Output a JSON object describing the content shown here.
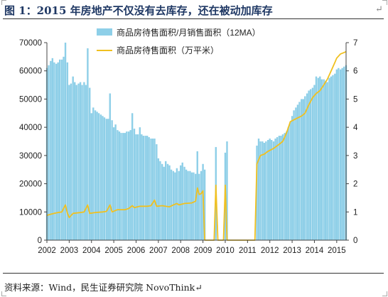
{
  "page": {
    "title": "图 1：2015 年房地产不仅没有去库存，还在被动加库存",
    "title_mark": "↵",
    "source": "资料来源：Wind，民生证券研究院 NovoThink↵"
  },
  "colors": {
    "bar": "#8ecfe8",
    "line": "#f0c020",
    "axis": "#444444",
    "text": "#222222"
  },
  "chart_data": {
    "type": "bar",
    "legend_position": "top",
    "grid": false,
    "x_ticks": [
      "2002",
      "2003",
      "2004",
      "2005",
      "2006",
      "2007",
      "2008",
      "2009",
      "2010",
      "2011",
      "2012",
      "2013",
      "2014",
      "2015"
    ],
    "xlim": [
      2002,
      2015.42
    ],
    "y_left": {
      "lim": [
        0,
        70000
      ],
      "ticks": [
        "0",
        "10000",
        "20000",
        "30000",
        "40000",
        "50000",
        "60000",
        "70000"
      ]
    },
    "y_right": {
      "lim": [
        0,
        7
      ],
      "ticks": [
        "0",
        "1",
        "2",
        "3",
        "4",
        "5",
        "6",
        "7"
      ]
    },
    "series": [
      {
        "name": "商品房待售面积/月销售面积（12MA）",
        "type": "bar",
        "axis": "left",
        "points": [
          [
            2002.0,
            61000
          ],
          [
            2002.08,
            62000
          ],
          [
            2002.17,
            63500
          ],
          [
            2002.25,
            64500
          ],
          [
            2002.33,
            63000
          ],
          [
            2002.42,
            62500
          ],
          [
            2002.5,
            63000
          ],
          [
            2002.58,
            64000
          ],
          [
            2002.67,
            64000
          ],
          [
            2002.75,
            65000
          ],
          [
            2002.83,
            70000
          ],
          [
            2002.92,
            63000
          ],
          [
            2003.0,
            55000
          ],
          [
            2003.08,
            55500
          ],
          [
            2003.17,
            58000
          ],
          [
            2003.25,
            56000
          ],
          [
            2003.33,
            55000
          ],
          [
            2003.42,
            55500
          ],
          [
            2003.5,
            56000
          ],
          [
            2003.58,
            55000
          ],
          [
            2003.67,
            56000
          ],
          [
            2003.75,
            55000
          ],
          [
            2003.83,
            68000
          ],
          [
            2003.92,
            54000
          ],
          [
            2004.0,
            45000
          ],
          [
            2004.08,
            47000
          ],
          [
            2004.17,
            46000
          ],
          [
            2004.25,
            45500
          ],
          [
            2004.33,
            45000
          ],
          [
            2004.42,
            44500
          ],
          [
            2004.5,
            44000
          ],
          [
            2004.58,
            43500
          ],
          [
            2004.67,
            43000
          ],
          [
            2004.75,
            43000
          ],
          [
            2004.83,
            52000
          ],
          [
            2004.92,
            42500
          ],
          [
            2005.0,
            40000
          ],
          [
            2005.08,
            41000
          ],
          [
            2005.17,
            39000
          ],
          [
            2005.25,
            38500
          ],
          [
            2005.33,
            38000
          ],
          [
            2005.42,
            38000
          ],
          [
            2005.5,
            38000
          ],
          [
            2005.58,
            38500
          ],
          [
            2005.67,
            38500
          ],
          [
            2005.75,
            39000
          ],
          [
            2005.83,
            45000
          ],
          [
            2005.92,
            39500
          ],
          [
            2006.0,
            37500
          ],
          [
            2006.08,
            37500
          ],
          [
            2006.17,
            40000
          ],
          [
            2006.25,
            37500
          ],
          [
            2006.33,
            37000
          ],
          [
            2006.42,
            37000
          ],
          [
            2006.5,
            37000
          ],
          [
            2006.58,
            36500
          ],
          [
            2006.67,
            36000
          ],
          [
            2006.75,
            36000
          ],
          [
            2006.83,
            36000
          ],
          [
            2006.92,
            34000
          ],
          [
            2007.0,
            29000
          ],
          [
            2007.08,
            28000
          ],
          [
            2007.17,
            27000
          ],
          [
            2007.25,
            26000
          ],
          [
            2007.33,
            28000
          ],
          [
            2007.42,
            27000
          ],
          [
            2007.5,
            26500
          ],
          [
            2007.58,
            25000
          ],
          [
            2007.67,
            24500
          ],
          [
            2007.75,
            24000
          ],
          [
            2007.83,
            25500
          ],
          [
            2007.92,
            24500
          ],
          [
            2008.0,
            26500
          ],
          [
            2008.08,
            27500
          ],
          [
            2008.17,
            26000
          ],
          [
            2008.25,
            25000
          ],
          [
            2008.33,
            24500
          ],
          [
            2008.42,
            24500
          ],
          [
            2008.5,
            24000
          ],
          [
            2008.58,
            24000
          ],
          [
            2008.67,
            23500
          ],
          [
            2008.75,
            31500
          ],
          [
            2008.83,
            23500
          ],
          [
            2008.92,
            24500
          ],
          [
            2009.0,
            27000
          ],
          [
            2009.08,
            25000
          ],
          [
            2009.58,
            33000
          ],
          [
            2010.0,
            31000
          ],
          [
            2010.08,
            35000
          ],
          [
            2011.42,
            33500
          ],
          [
            2011.5,
            36000
          ],
          [
            2011.58,
            35000
          ],
          [
            2011.67,
            35000
          ],
          [
            2011.75,
            34500
          ],
          [
            2011.83,
            35000
          ],
          [
            2011.92,
            35500
          ],
          [
            2012.0,
            36000
          ],
          [
            2012.08,
            35500
          ],
          [
            2012.17,
            35000
          ],
          [
            2012.25,
            36000
          ],
          [
            2012.33,
            36500
          ],
          [
            2012.42,
            37000
          ],
          [
            2012.5,
            37000
          ],
          [
            2012.58,
            37500
          ],
          [
            2012.67,
            38000
          ],
          [
            2012.75,
            38500
          ],
          [
            2012.83,
            40000
          ],
          [
            2012.92,
            42000
          ],
          [
            2013.0,
            44000
          ],
          [
            2013.08,
            46000
          ],
          [
            2013.17,
            47000
          ],
          [
            2013.25,
            48000
          ],
          [
            2013.33,
            49000
          ],
          [
            2013.42,
            50000
          ],
          [
            2013.5,
            50000
          ],
          [
            2013.58,
            51000
          ],
          [
            2013.67,
            52000
          ],
          [
            2013.75,
            53000
          ],
          [
            2013.83,
            53500
          ],
          [
            2013.92,
            54000
          ],
          [
            2014.0,
            55000
          ],
          [
            2014.08,
            58000
          ],
          [
            2014.17,
            57500
          ],
          [
            2014.25,
            58000
          ],
          [
            2014.33,
            57000
          ],
          [
            2014.42,
            57000
          ],
          [
            2014.5,
            56500
          ],
          [
            2014.58,
            56000
          ],
          [
            2014.67,
            57500
          ],
          [
            2014.75,
            58000
          ],
          [
            2014.83,
            58500
          ],
          [
            2014.92,
            59000
          ],
          [
            2015.0,
            60500
          ],
          [
            2015.08,
            61000
          ],
          [
            2015.17,
            60500
          ],
          [
            2015.25,
            61000
          ],
          [
            2015.33,
            61500
          ],
          [
            2015.42,
            62000
          ]
        ]
      },
      {
        "name": "商品房待售面积（万平米）",
        "type": "line",
        "axis": "right",
        "points": [
          [
            2002.0,
            0.88
          ],
          [
            2002.17,
            0.92
          ],
          [
            2002.33,
            0.95
          ],
          [
            2002.5,
            0.98
          ],
          [
            2002.67,
            1.0
          ],
          [
            2002.83,
            1.25
          ],
          [
            2002.92,
            0.95
          ],
          [
            2003.0,
            0.8
          ],
          [
            2003.17,
            0.95
          ],
          [
            2003.5,
            0.98
          ],
          [
            2003.67,
            1.0
          ],
          [
            2003.83,
            1.25
          ],
          [
            2003.92,
            0.95
          ],
          [
            2004.17,
            0.98
          ],
          [
            2004.5,
            1.0
          ],
          [
            2004.67,
            1.02
          ],
          [
            2004.83,
            1.25
          ],
          [
            2004.92,
            1.0
          ],
          [
            2005.17,
            1.08
          ],
          [
            2005.5,
            1.08
          ],
          [
            2005.67,
            1.12
          ],
          [
            2005.83,
            1.22
          ],
          [
            2005.92,
            1.15
          ],
          [
            2006.17,
            1.2
          ],
          [
            2006.5,
            1.2
          ],
          [
            2006.67,
            1.22
          ],
          [
            2006.83,
            1.42
          ],
          [
            2006.92,
            1.2
          ],
          [
            2007.17,
            1.22
          ],
          [
            2007.5,
            1.18
          ],
          [
            2007.67,
            1.25
          ],
          [
            2007.83,
            1.3
          ],
          [
            2007.92,
            1.25
          ],
          [
            2008.17,
            1.3
          ],
          [
            2008.5,
            1.32
          ],
          [
            2008.67,
            1.38
          ],
          [
            2008.75,
            1.85
          ],
          [
            2008.83,
            1.62
          ],
          [
            2008.92,
            1.65
          ],
          [
            2009.0,
            1.75
          ],
          [
            2009.08,
            0.0
          ],
          [
            2009.5,
            0.0
          ],
          [
            2009.58,
            1.95
          ],
          [
            2009.67,
            0.0
          ],
          [
            2009.92,
            0.0
          ],
          [
            2010.0,
            1.95
          ],
          [
            2010.08,
            0.0
          ],
          [
            2011.33,
            0.0
          ],
          [
            2011.42,
            2.7
          ],
          [
            2011.58,
            3.0
          ],
          [
            2011.75,
            3.05
          ],
          [
            2011.92,
            3.15
          ],
          [
            2012.17,
            3.25
          ],
          [
            2012.42,
            3.4
          ],
          [
            2012.58,
            3.5
          ],
          [
            2012.75,
            3.8
          ],
          [
            2012.92,
            4.2
          ],
          [
            2013.17,
            4.3
          ],
          [
            2013.42,
            4.4
          ],
          [
            2013.58,
            4.5
          ],
          [
            2013.75,
            4.8
          ],
          [
            2013.92,
            5.05
          ],
          [
            2014.08,
            5.2
          ],
          [
            2014.25,
            5.3
          ],
          [
            2014.42,
            5.5
          ],
          [
            2014.58,
            5.7
          ],
          [
            2014.75,
            6.0
          ],
          [
            2014.92,
            6.3
          ],
          [
            2015.0,
            6.45
          ],
          [
            2015.17,
            6.6
          ],
          [
            2015.33,
            6.65
          ],
          [
            2015.42,
            6.68
          ]
        ]
      }
    ]
  }
}
